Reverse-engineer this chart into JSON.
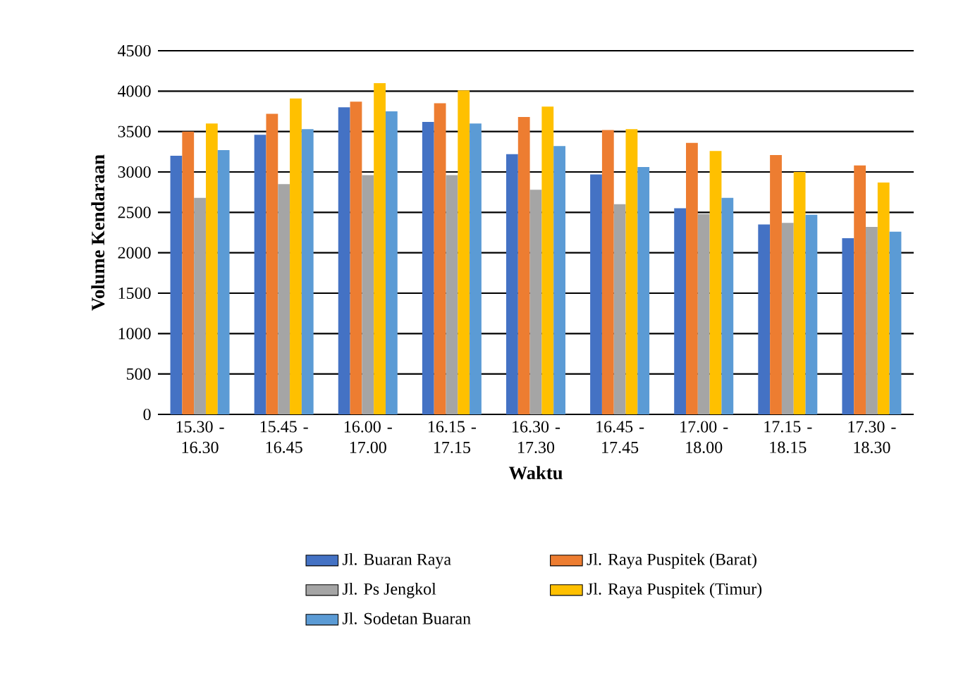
{
  "chart_data": {
    "type": "bar",
    "xlabel": "Waktu",
    "ylabel": "Volume Kendaraan",
    "categories": [
      "15.30 - 16.30",
      "15.45 - 16.45",
      "16.00 - 17.00",
      "16.15 - 17.15",
      "16.30 - 17.30",
      "16.45 - 17.45",
      "17.00 - 18.00",
      "17.15 - 18.15",
      "17.30 - 18.30"
    ],
    "series": [
      {
        "name": "Jl. Buaran Raya",
        "color": "#4472c4",
        "values": [
          3200,
          3460,
          3800,
          3620,
          3220,
          2970,
          2550,
          2350,
          2180
        ]
      },
      {
        "name": "Jl. Raya Puspitek (Barat)",
        "color": "#ed7d31",
        "values": [
          3500,
          3720,
          3870,
          3850,
          3680,
          3520,
          3360,
          3210,
          3080
        ]
      },
      {
        "name": "Jl. Ps Jengkol",
        "color": "#a5a5a5",
        "values": [
          2680,
          2850,
          2960,
          2960,
          2780,
          2600,
          2480,
          2370,
          2320
        ]
      },
      {
        "name": "Jl. Raya Puspitek (Timur)",
        "color": "#ffc000",
        "values": [
          3600,
          3910,
          4100,
          4010,
          3810,
          3530,
          3260,
          3000,
          2870
        ]
      },
      {
        "name": "Jl. Sodetan Buaran",
        "color": "#5b9bd5",
        "values": [
          3270,
          3530,
          3750,
          3600,
          3320,
          3060,
          2680,
          2470,
          2260
        ]
      }
    ],
    "ylim": [
      0,
      4500
    ],
    "yticks": [
      0,
      500,
      1000,
      1500,
      2000,
      2500,
      3000,
      3500,
      4000,
      4500
    ],
    "grid": "y",
    "legend": "bottom"
  }
}
